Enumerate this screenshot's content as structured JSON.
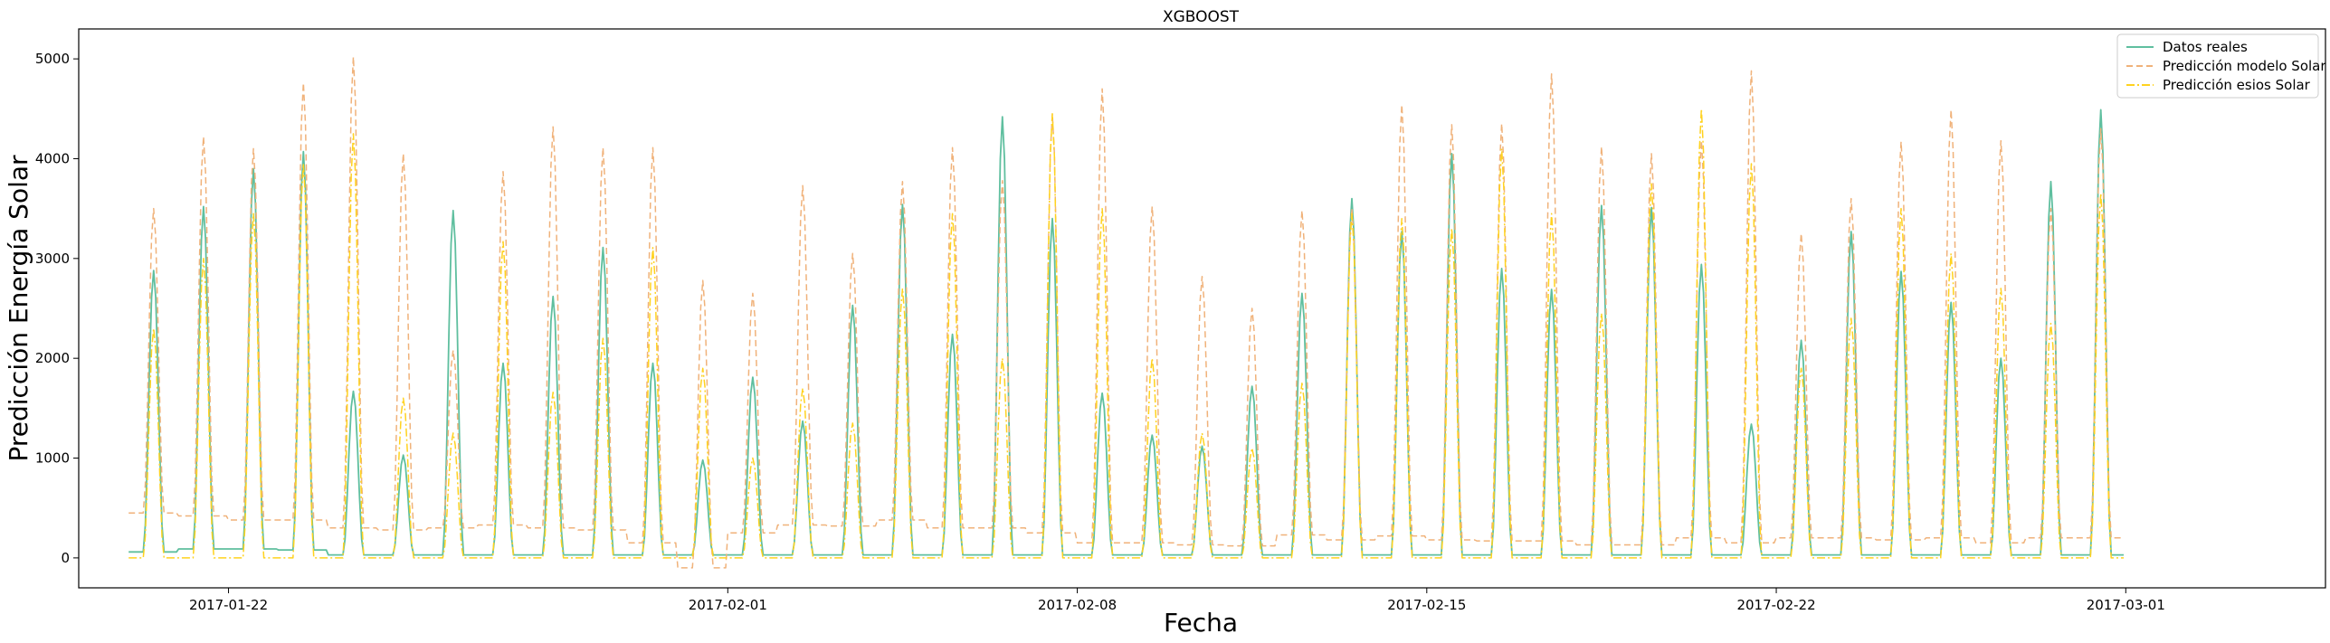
{
  "chart_data": {
    "type": "line",
    "title": "XGBOOST",
    "xlabel": "Fecha",
    "ylabel": "Predicción Energía Solar",
    "x_start": "2017-01-20",
    "x_end": "2017-03-02",
    "xlim": [
      "2017-01-19",
      "2017-03-05"
    ],
    "ylim": [
      -300,
      5300
    ],
    "x_ticks": [
      "2017-01-22",
      "2017-02-01",
      "2017-02-08",
      "2017-02-15",
      "2017-02-22",
      "2017-03-01"
    ],
    "y_ticks": [
      0,
      1000,
      2000,
      3000,
      4000,
      5000
    ],
    "grid": false,
    "legend_position": "top-right",
    "series": [
      {
        "name": "Datos reales",
        "color": "#5fbf9f",
        "style": "solid",
        "daily_peaks": [
          2880,
          3520,
          3900,
          4070,
          1670,
          1030,
          3480,
          1950,
          2620,
          3110,
          1950,
          980,
          1810,
          1370,
          2530,
          3540,
          2240,
          4420,
          3400,
          1650,
          1230,
          1120,
          1720,
          2650,
          3600,
          3270,
          4050,
          2900,
          2690,
          3530,
          3510,
          2940,
          1340,
          2180,
          3270,
          2870,
          2560,
          2000,
          3770,
          4490
        ],
        "daily_base": [
          60,
          90,
          90,
          80,
          30,
          30,
          30,
          30,
          30,
          30,
          30,
          30,
          30,
          30,
          30,
          30,
          30,
          30,
          30,
          30,
          30,
          30,
          30,
          30,
          30,
          30,
          30,
          30,
          30,
          30,
          30,
          30,
          30,
          30,
          30,
          30,
          30,
          30,
          30,
          30
        ]
      },
      {
        "name": "Predicción modelo Solar",
        "color": "#f0b27a",
        "style": "dashed",
        "daily_peaks": [
          3500,
          4220,
          4100,
          4760,
          5020,
          4050,
          2080,
          3870,
          4320,
          4110,
          4110,
          2780,
          2650,
          3730,
          3050,
          3770,
          4110,
          3780,
          4450,
          4700,
          3520,
          2820,
          2500,
          3480,
          3500,
          4540,
          4340,
          4350,
          4850,
          4120,
          4050,
          4180,
          4880,
          3250,
          3600,
          4170,
          4490,
          4180,
          3500,
          4300
        ],
        "daily_base": [
          450,
          420,
          380,
          380,
          300,
          280,
          300,
          330,
          300,
          280,
          150,
          -100,
          250,
          330,
          320,
          380,
          300,
          300,
          250,
          150,
          150,
          130,
          120,
          230,
          180,
          220,
          180,
          170,
          170,
          130,
          130,
          200,
          150,
          200,
          200,
          180,
          200,
          150,
          200,
          200
        ]
      },
      {
        "name": "Predicción esios Solar",
        "color": "#ffd21f",
        "style": "dashdot",
        "daily_peaks": [
          2300,
          3000,
          3450,
          3950,
          4250,
          1600,
          1250,
          3170,
          1660,
          2200,
          3110,
          1900,
          1000,
          1700,
          1350,
          2700,
          3450,
          2000,
          4450,
          3500,
          2000,
          1250,
          1100,
          1750,
          3450,
          3400,
          3300,
          4100,
          3450,
          2450,
          3750,
          4500,
          3950,
          1900,
          2400,
          3500,
          3050,
          2700,
          2350,
          3650
        ],
        "daily_base": [
          0,
          0,
          0,
          0,
          0,
          0,
          0,
          0,
          0,
          0,
          0,
          0,
          0,
          0,
          0,
          0,
          0,
          0,
          0,
          0,
          0,
          0,
          0,
          0,
          0,
          0,
          0,
          0,
          0,
          0,
          0,
          0,
          0,
          0,
          0,
          0,
          0,
          0,
          0,
          0
        ]
      }
    ]
  }
}
